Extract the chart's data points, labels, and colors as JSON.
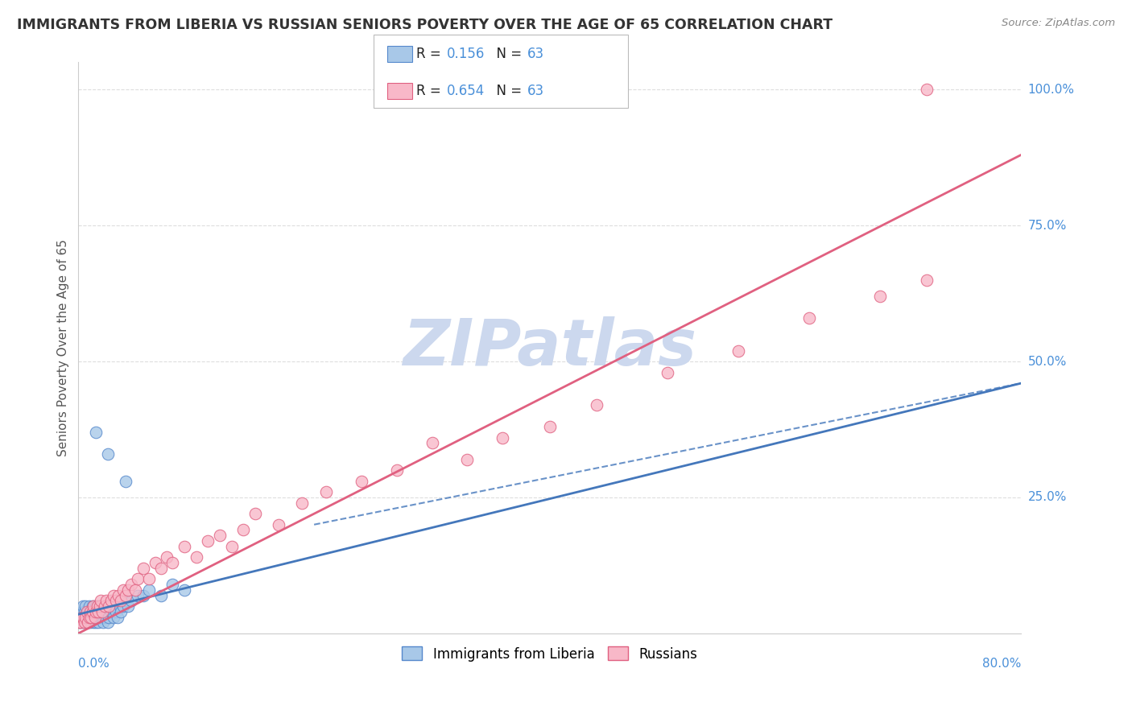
{
  "title": "IMMIGRANTS FROM LIBERIA VS RUSSIAN SENIORS POVERTY OVER THE AGE OF 65 CORRELATION CHART",
  "source_text": "Source: ZipAtlas.com",
  "ylabel": "Seniors Poverty Over the Age of 65",
  "liberia_color": "#a8c8e8",
  "liberia_edge_color": "#5588cc",
  "russians_color": "#f8b8c8",
  "russians_edge_color": "#e06080",
  "liberia_line_color": "#4477bb",
  "russians_line_color": "#e05070",
  "watermark_color": "#ccd8ee",
  "background_color": "#ffffff",
  "grid_color": "#dddddd",
  "title_color": "#333333",
  "axis_label_color": "#4a90d9",
  "R_liberia": "0.156",
  "R_russians": "0.654",
  "N": "63",
  "xlim": [
    0.0,
    0.8
  ],
  "ylim": [
    0.0,
    1.05
  ],
  "liberia_line_x0": 0.0,
  "liberia_line_y0": 0.035,
  "liberia_line_x1": 0.8,
  "liberia_line_y1": 0.46,
  "russians_line_x0": 0.0,
  "russians_line_y0": 0.0,
  "russians_line_x1": 0.8,
  "russians_line_y1": 0.88,
  "liberia_x": [
    0.001,
    0.002,
    0.003,
    0.003,
    0.004,
    0.004,
    0.005,
    0.005,
    0.006,
    0.006,
    0.007,
    0.007,
    0.008,
    0.008,
    0.009,
    0.009,
    0.01,
    0.01,
    0.011,
    0.011,
    0.012,
    0.012,
    0.013,
    0.013,
    0.014,
    0.015,
    0.015,
    0.016,
    0.016,
    0.017,
    0.018,
    0.018,
    0.019,
    0.02,
    0.02,
    0.021,
    0.022,
    0.023,
    0.024,
    0.025,
    0.025,
    0.026,
    0.027,
    0.028,
    0.03,
    0.031,
    0.032,
    0.033,
    0.035,
    0.036,
    0.038,
    0.04,
    0.042,
    0.045,
    0.05,
    0.055,
    0.06,
    0.07,
    0.08,
    0.09,
    0.015,
    0.04,
    0.025
  ],
  "liberia_y": [
    0.02,
    0.03,
    0.04,
    0.02,
    0.03,
    0.05,
    0.02,
    0.04,
    0.03,
    0.05,
    0.02,
    0.03,
    0.04,
    0.02,
    0.03,
    0.05,
    0.04,
    0.02,
    0.03,
    0.04,
    0.03,
    0.05,
    0.02,
    0.04,
    0.03,
    0.05,
    0.02,
    0.04,
    0.03,
    0.02,
    0.03,
    0.05,
    0.04,
    0.03,
    0.05,
    0.02,
    0.04,
    0.03,
    0.05,
    0.04,
    0.02,
    0.03,
    0.05,
    0.04,
    0.03,
    0.05,
    0.04,
    0.03,
    0.05,
    0.04,
    0.05,
    0.06,
    0.05,
    0.06,
    0.07,
    0.07,
    0.08,
    0.07,
    0.09,
    0.08,
    0.37,
    0.28,
    0.33
  ],
  "russians_x": [
    0.001,
    0.002,
    0.003,
    0.004,
    0.005,
    0.006,
    0.007,
    0.008,
    0.009,
    0.01,
    0.011,
    0.012,
    0.013,
    0.014,
    0.015,
    0.016,
    0.017,
    0.018,
    0.019,
    0.02,
    0.022,
    0.024,
    0.026,
    0.028,
    0.03,
    0.032,
    0.034,
    0.036,
    0.038,
    0.04,
    0.042,
    0.045,
    0.048,
    0.05,
    0.055,
    0.06,
    0.065,
    0.07,
    0.075,
    0.08,
    0.09,
    0.1,
    0.11,
    0.12,
    0.13,
    0.14,
    0.15,
    0.17,
    0.19,
    0.21,
    0.24,
    0.27,
    0.3,
    0.33,
    0.36,
    0.4,
    0.44,
    0.5,
    0.56,
    0.62,
    0.68,
    0.72,
    0.72
  ],
  "russians_y": [
    0.02,
    0.02,
    0.03,
    0.03,
    0.02,
    0.03,
    0.04,
    0.02,
    0.03,
    0.04,
    0.03,
    0.04,
    0.05,
    0.03,
    0.04,
    0.05,
    0.04,
    0.05,
    0.06,
    0.04,
    0.05,
    0.06,
    0.05,
    0.06,
    0.07,
    0.06,
    0.07,
    0.06,
    0.08,
    0.07,
    0.08,
    0.09,
    0.08,
    0.1,
    0.12,
    0.1,
    0.13,
    0.12,
    0.14,
    0.13,
    0.16,
    0.14,
    0.17,
    0.18,
    0.16,
    0.19,
    0.22,
    0.2,
    0.24,
    0.26,
    0.28,
    0.3,
    0.35,
    0.32,
    0.36,
    0.38,
    0.42,
    0.48,
    0.52,
    0.58,
    0.62,
    0.65,
    1.0
  ]
}
